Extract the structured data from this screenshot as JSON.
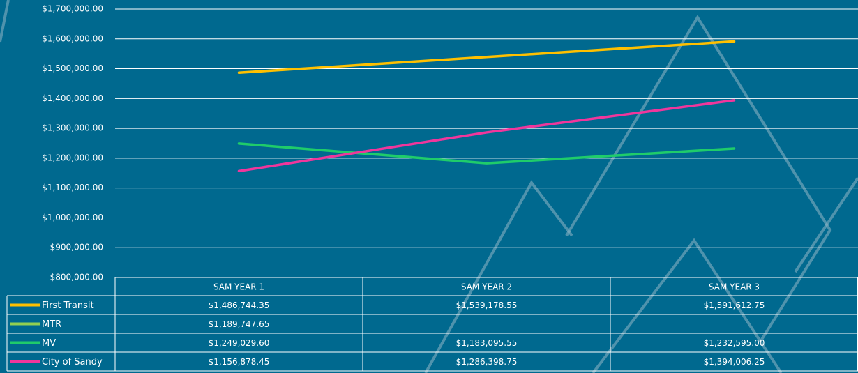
{
  "chart_data": {
    "type": "line",
    "categories": [
      "SAM YEAR 1",
      "SAM YEAR 2",
      "SAM YEAR 3"
    ],
    "series": [
      {
        "name": "First Transit",
        "color": "#ffc000",
        "values": [
          1486744.35,
          1539178.55,
          1591612.75
        ],
        "value_labels": [
          "$1,486,744.35",
          "$1,539,178.55",
          "$1,591,612.75"
        ]
      },
      {
        "name": "MTR",
        "color": "#92d050",
        "values": [
          1189747.65,
          null,
          null
        ],
        "value_labels": [
          "$1,189,747.65",
          null,
          null
        ]
      },
      {
        "name": "MV",
        "color": "#1fcc6a",
        "values": [
          1249029.6,
          1183095.55,
          1232595.0
        ],
        "value_labels": [
          "$1,249,029.60",
          "$1,183,095.55",
          "$1,232,595.00"
        ]
      },
      {
        "name": "City of Sandy",
        "color": "#f0369c",
        "values": [
          1156878.45,
          1286398.75,
          1394006.25
        ],
        "value_labels": [
          "$1,156,878.45",
          "$1,286,398.75",
          "$1,394,006.25"
        ]
      }
    ],
    "ylim": [
      800000,
      1700000
    ],
    "yticks": [
      {
        "value": 800000,
        "label": "$800,000.00"
      },
      {
        "value": 900000,
        "label": "$900,000.00"
      },
      {
        "value": 1000000,
        "label": "$1,000,000.00"
      },
      {
        "value": 1100000,
        "label": "$1,100,000.00"
      },
      {
        "value": 1200000,
        "label": "$1,200,000.00"
      },
      {
        "value": 1300000,
        "label": "$1,300,000.00"
      },
      {
        "value": 1400000,
        "label": "$1,400,000.00"
      },
      {
        "value": 1500000,
        "label": "$1,500,000.00"
      },
      {
        "value": 1600000,
        "label": "$1,600,000.00"
      },
      {
        "value": 1700000,
        "label": "$1,700,000.00"
      }
    ],
    "grid": true,
    "data_table": true
  }
}
